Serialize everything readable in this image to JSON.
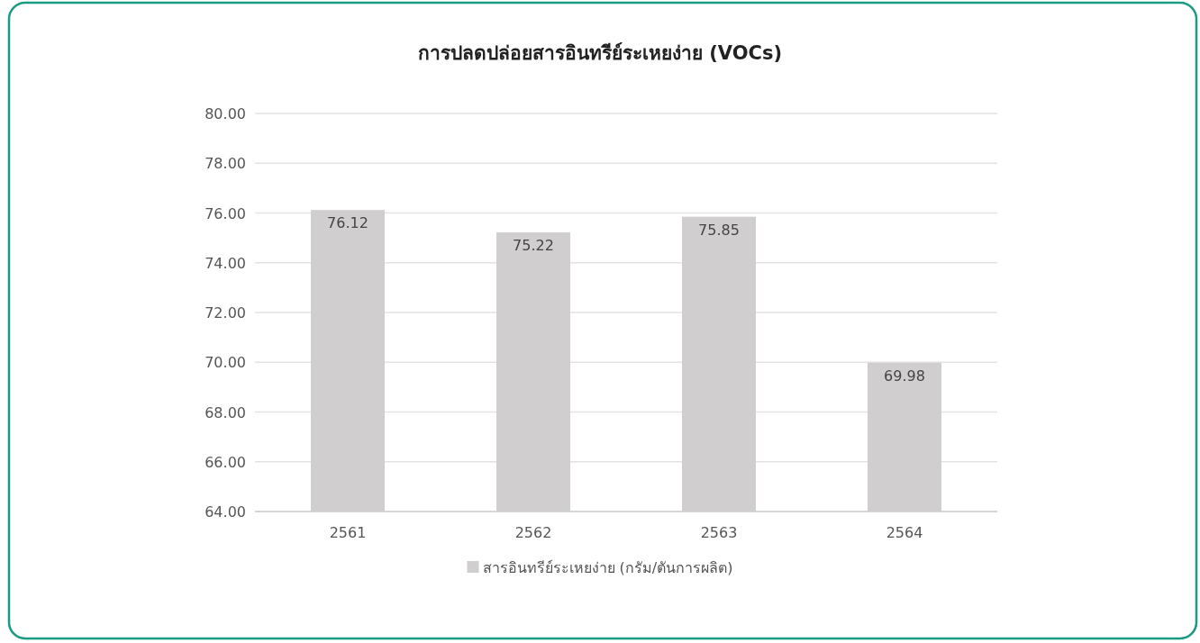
{
  "chart_data": {
    "type": "bar",
    "title": "การปลดปล่อยสารอินทรีย์ระเหยง่าย (VOCs)",
    "categories": [
      "2561",
      "2562",
      "2563",
      "2564"
    ],
    "series": [
      {
        "name": "สารอินทรีย์ระเหยง่าย (กรัม/ตันการผลิต)",
        "color": "#d0cecf",
        "values": [
          76.12,
          75.22,
          75.85,
          69.98
        ]
      }
    ],
    "ylim": [
      64,
      80
    ],
    "yticks": [
      {
        "value": 64,
        "label": "64.00"
      },
      {
        "value": 66,
        "label": "66.00"
      },
      {
        "value": 68,
        "label": "68.00"
      },
      {
        "value": 70,
        "label": "70.00"
      },
      {
        "value": 72,
        "label": "72.00"
      },
      {
        "value": 74,
        "label": "74.00"
      },
      {
        "value": 76,
        "label": "76.00"
      },
      {
        "value": 78,
        "label": "78.00"
      },
      {
        "value": 80,
        "label": "80.00"
      }
    ],
    "grid": "y",
    "legend": "bottom",
    "data_labels": true
  }
}
